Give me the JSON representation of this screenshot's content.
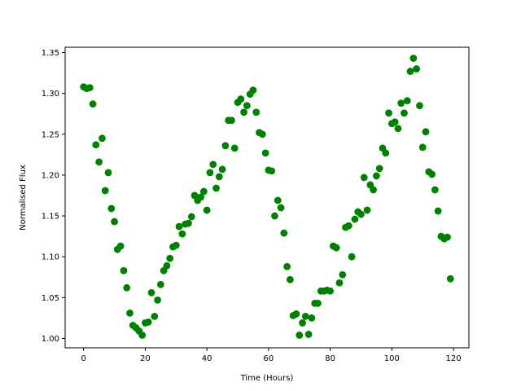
{
  "chart_data": {
    "type": "scatter",
    "title": "",
    "xlabel": "Time (Hours)",
    "ylabel": "Normalised Flux",
    "xlim": [
      -6,
      125
    ],
    "ylim": [
      0.9885,
      1.3565
    ],
    "xticks": [
      0,
      20,
      40,
      60,
      80,
      100,
      120
    ],
    "yticks": [
      1.0,
      1.05,
      1.1,
      1.15,
      1.2,
      1.25,
      1.3,
      1.35
    ],
    "xtick_labels": [
      "0",
      "20",
      "40",
      "60",
      "80",
      "100",
      "120"
    ],
    "ytick_labels": [
      "1.00",
      "1.05",
      "1.10",
      "1.15",
      "1.20",
      "1.25",
      "1.30",
      "1.35"
    ],
    "grid": false,
    "marker_color": "#008000",
    "x": [
      0,
      1,
      2,
      3,
      4,
      5,
      6,
      7,
      8,
      9,
      10,
      11,
      12,
      13,
      14,
      15,
      16,
      17,
      18,
      19,
      20,
      21,
      22,
      23,
      24,
      25,
      26,
      27,
      28,
      29,
      30,
      31,
      32,
      33,
      34,
      35,
      36,
      37,
      38,
      39,
      40,
      41,
      42,
      43,
      44,
      45,
      46,
      47,
      48,
      49,
      50,
      51,
      52,
      53,
      54,
      55,
      56,
      57,
      58,
      59,
      60,
      61,
      62,
      63,
      64,
      65,
      66,
      67,
      68,
      69,
      70,
      71,
      72,
      73,
      74,
      75,
      76,
      77,
      78,
      79,
      80,
      81,
      82,
      83,
      84,
      85,
      86,
      87,
      88,
      89,
      90,
      91,
      92,
      93,
      94,
      95,
      96,
      97,
      98,
      99,
      100,
      101,
      102,
      103,
      104,
      105,
      106,
      107,
      108,
      109,
      110,
      111,
      112,
      113,
      114,
      115,
      116,
      117,
      118,
      119
    ],
    "y": [
      1.308,
      1.306,
      1.307,
      1.287,
      1.237,
      1.216,
      1.245,
      1.181,
      1.203,
      1.159,
      1.143,
      1.109,
      1.113,
      1.083,
      1.062,
      1.031,
      1.016,
      1.013,
      1.009,
      1.004,
      1.019,
      1.02,
      1.056,
      1.027,
      1.047,
      1.066,
      1.083,
      1.089,
      1.098,
      1.112,
      1.114,
      1.137,
      1.128,
      1.14,
      1.141,
      1.149,
      1.175,
      1.169,
      1.173,
      1.18,
      1.157,
      1.203,
      1.213,
      1.184,
      1.198,
      1.207,
      1.236,
      1.267,
      1.267,
      1.233,
      1.289,
      1.293,
      1.277,
      1.285,
      1.299,
      1.304,
      1.277,
      1.252,
      1.25,
      1.227,
      1.206,
      1.205,
      1.15,
      1.169,
      1.16,
      1.129,
      1.088,
      1.072,
      1.028,
      1.03,
      1.004,
      1.019,
      1.027,
      1.005,
      1.025,
      1.043,
      1.043,
      1.058,
      1.058,
      1.059,
      1.058,
      1.113,
      1.111,
      1.068,
      1.078,
      1.136,
      1.138,
      1.1,
      1.146,
      1.155,
      1.152,
      1.197,
      1.157,
      1.188,
      1.182,
      1.199,
      1.208,
      1.233,
      1.227,
      1.276,
      1.263,
      1.265,
      1.257,
      1.288,
      1.276,
      1.291,
      1.327,
      1.343,
      1.33,
      1.285,
      1.234,
      1.253,
      1.204,
      1.201,
      1.182,
      1.156,
      1.125,
      1.122,
      1.124,
      1.073
    ]
  }
}
